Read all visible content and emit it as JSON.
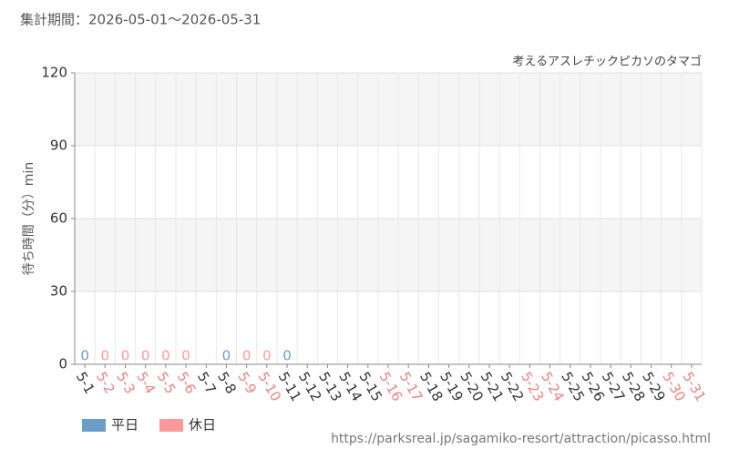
{
  "period": "集計期間：2026-05-01〜2026-05-31",
  "source": "https://parksreal.jp/sagamiko-resort/attraction/picasso.html",
  "chart_data": {
    "type": "bar",
    "subtitle": "考えるアスレチックピカソのタマゴ",
    "ylabel": "待ち時間（分）min",
    "categories": [
      "5-1",
      "5-2",
      "5-3",
      "5-4",
      "5-5",
      "5-6",
      "5-7",
      "5-8",
      "5-9",
      "5-10",
      "5-11",
      "5-12",
      "5-13",
      "5-14",
      "5-15",
      "5-16",
      "5-17",
      "5-18",
      "5-19",
      "5-20",
      "5-21",
      "5-22",
      "5-23",
      "5-24",
      "5-25",
      "5-26",
      "5-27",
      "5-28",
      "5-29",
      "5-30",
      "5-31"
    ],
    "category_colors": [
      "#333333",
      "#f08080",
      "#f08080",
      "#f08080",
      "#f08080",
      "#f08080",
      "#333333",
      "#333333",
      "#f08080",
      "#f08080",
      "#333333",
      "#333333",
      "#333333",
      "#333333",
      "#333333",
      "#f08080",
      "#f08080",
      "#333333",
      "#333333",
      "#333333",
      "#333333",
      "#333333",
      "#f08080",
      "#f08080",
      "#333333",
      "#333333",
      "#333333",
      "#333333",
      "#333333",
      "#f08080",
      "#f08080"
    ],
    "series": [
      {
        "name": "平日",
        "color": "#6a9dc8",
        "values": [
          0,
          null,
          null,
          null,
          null,
          null,
          null,
          0,
          null,
          null,
          0,
          null,
          null,
          null,
          null,
          null,
          null,
          null,
          null,
          null,
          null,
          null,
          null,
          null,
          null,
          null,
          null,
          null,
          null,
          null,
          null
        ]
      },
      {
        "name": "休日",
        "color": "#ff9999",
        "values": [
          null,
          0,
          0,
          0,
          0,
          0,
          null,
          null,
          0,
          0,
          null,
          null,
          null,
          null,
          null,
          null,
          null,
          null,
          null,
          null,
          null,
          null,
          null,
          null,
          null,
          null,
          null,
          null,
          null,
          null,
          null
        ]
      }
    ],
    "ylim": [
      0,
      120
    ],
    "yticks": [
      0,
      30,
      60,
      90,
      120
    ],
    "grid": true
  }
}
